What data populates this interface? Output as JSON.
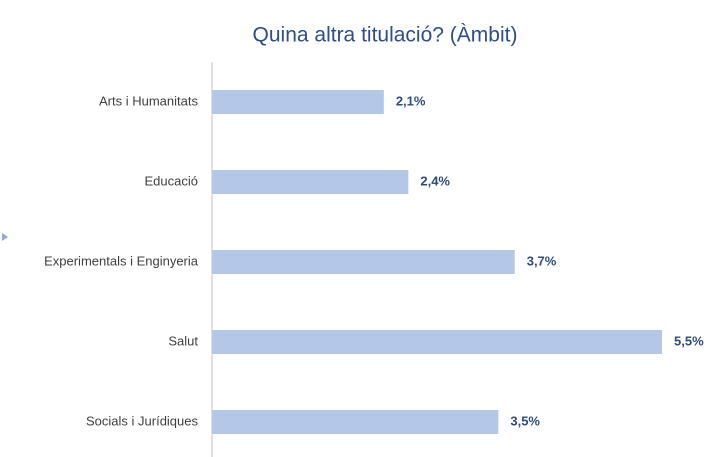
{
  "chart_data": {
    "type": "bar",
    "orientation": "horizontal",
    "title": "Quina altra titulació? (Àmbit)",
    "categories": [
      "Arts i Humanitats",
      "Educació",
      "Experimentals i Enginyeria",
      "Salut",
      "Socials i Jurídiques"
    ],
    "values": [
      2.1,
      2.4,
      3.7,
      5.5,
      3.5
    ],
    "value_labels": [
      "2,1%",
      "2,4%",
      "3,7%",
      "5,5%",
      "3,5%"
    ],
    "color": "#b4c7e7"
  }
}
